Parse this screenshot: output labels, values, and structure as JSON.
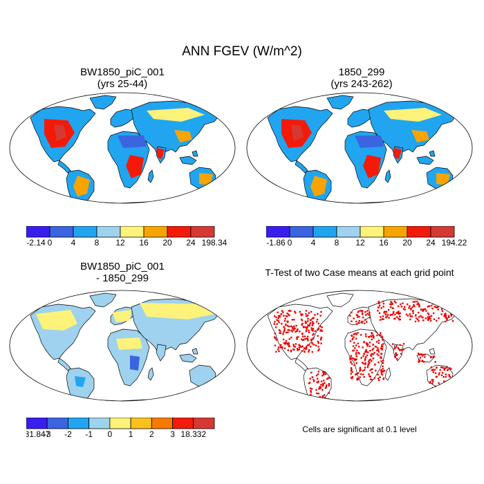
{
  "title": "ANN FGEV (W/m^2)",
  "panels": [
    {
      "title": "BW1850_piC_001",
      "subtitle": "(yrs 25-44)",
      "colorbar": {
        "colors": [
          "#3a1ef0",
          "#3b64e0",
          "#21a5f0",
          "#9ed2ee",
          "#fdf27a",
          "#f7a400",
          "#f41a0a",
          "#d43a33"
        ],
        "labels": [
          "-2.14",
          "0",
          "4",
          "8",
          "12",
          "16",
          "20",
          "24",
          "198.34"
        ]
      }
    },
    {
      "title": "1850_299",
      "subtitle": "(yrs 243-262)",
      "colorbar": {
        "colors": [
          "#3a1ef0",
          "#3b64e0",
          "#21a5f0",
          "#9ed2ee",
          "#fdf27a",
          "#f7a400",
          "#f41a0a",
          "#d43a33"
        ],
        "labels": [
          "-1.86",
          "0",
          "4",
          "8",
          "12",
          "16",
          "20",
          "24",
          "194.22"
        ]
      }
    },
    {
      "title": "BW1850_piC_001",
      "subtitle": "- 1850_299",
      "colorbar": {
        "colors": [
          "#3a1ef0",
          "#3b64e0",
          "#21a5f0",
          "#9ed2ee",
          "#fdf27a",
          "#fbc01a",
          "#f77a00",
          "#f41a0a",
          "#d43a33"
        ],
        "labels": [
          "-31.847",
          "-3",
          "-2",
          "-1",
          "0",
          "1",
          "2",
          "3",
          "18.332"
        ]
      }
    },
    {
      "title": "T-Test of two Case means at each grid point",
      "subtitle": "",
      "note": "Cells are significant at 0.1 level"
    }
  ]
}
